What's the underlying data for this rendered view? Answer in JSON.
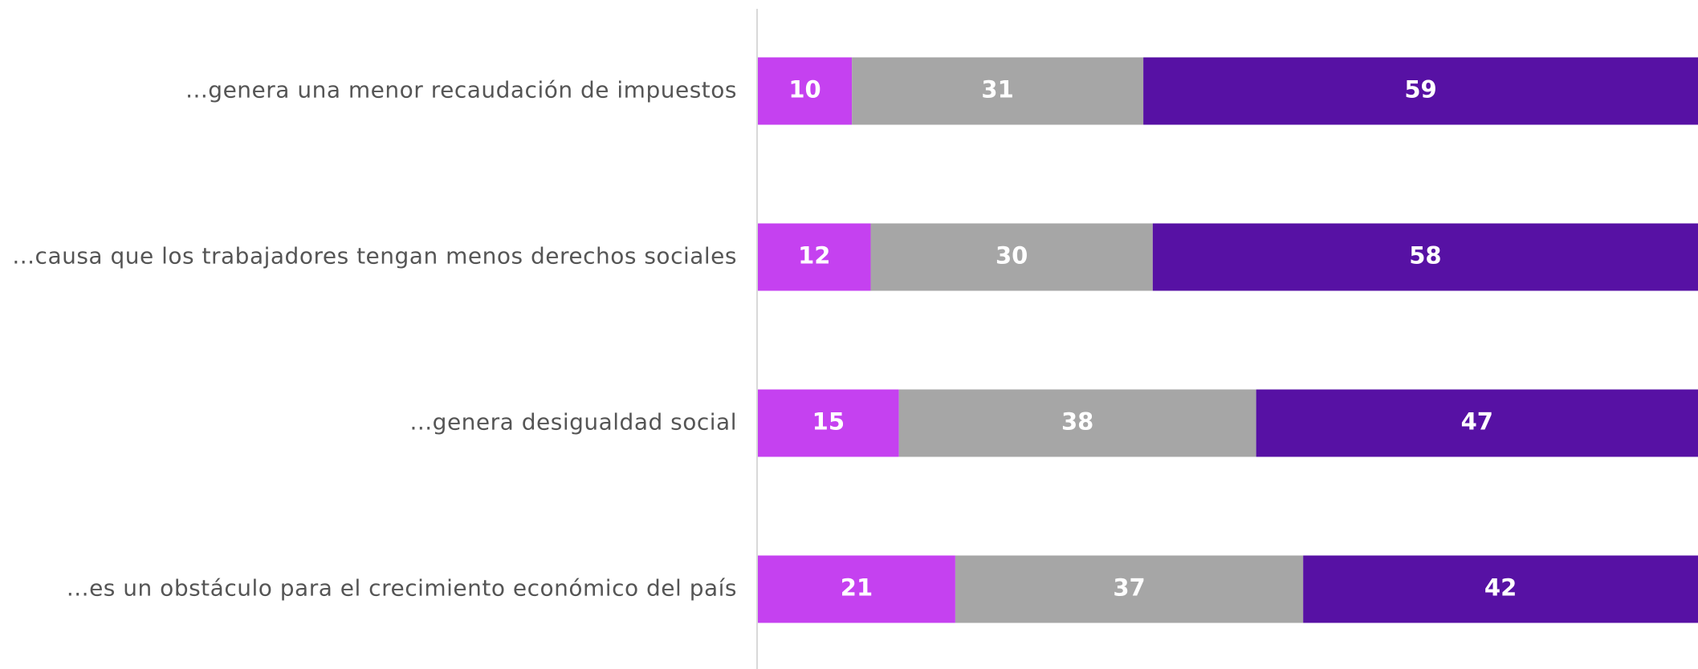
{
  "chart_data": {
    "type": "stacked-barh",
    "categories": [
      "...genera una menor recaudación de impuestos",
      "...causa que los trabajadores tengan menos derechos sociales",
      "...genera desigualdad social",
      "...es un obstáculo para el crecimiento económico del país"
    ],
    "series": [
      {
        "color": "#c541f0",
        "values": [
          10,
          12,
          15,
          21
        ]
      },
      {
        "color": "#a6a6a6",
        "values": [
          31,
          30,
          38,
          37
        ]
      },
      {
        "color": "#5711a4",
        "values": [
          59,
          58,
          47,
          42
        ]
      }
    ],
    "xlim": [
      0,
      100
    ]
  }
}
